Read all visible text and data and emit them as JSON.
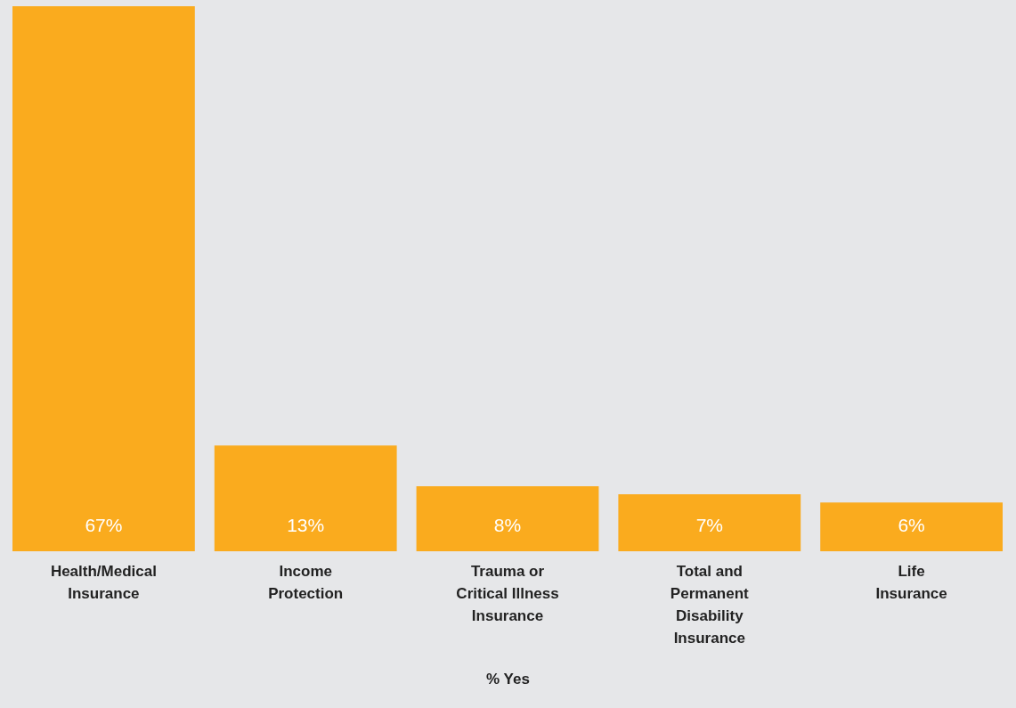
{
  "chart_data": {
    "type": "bar",
    "xlabel": "% Yes",
    "categories": [
      "Health/Medical Insurance",
      "Income Protection",
      "Trauma or Critical Illness Insurance",
      "Total and Permanent Disability Insurance",
      "Life Insurance"
    ],
    "values": [
      67,
      13,
      8,
      7,
      6
    ],
    "value_labels": [
      "67%",
      "13%",
      "8%",
      "7%",
      "6%"
    ],
    "color": "#faab1e"
  }
}
